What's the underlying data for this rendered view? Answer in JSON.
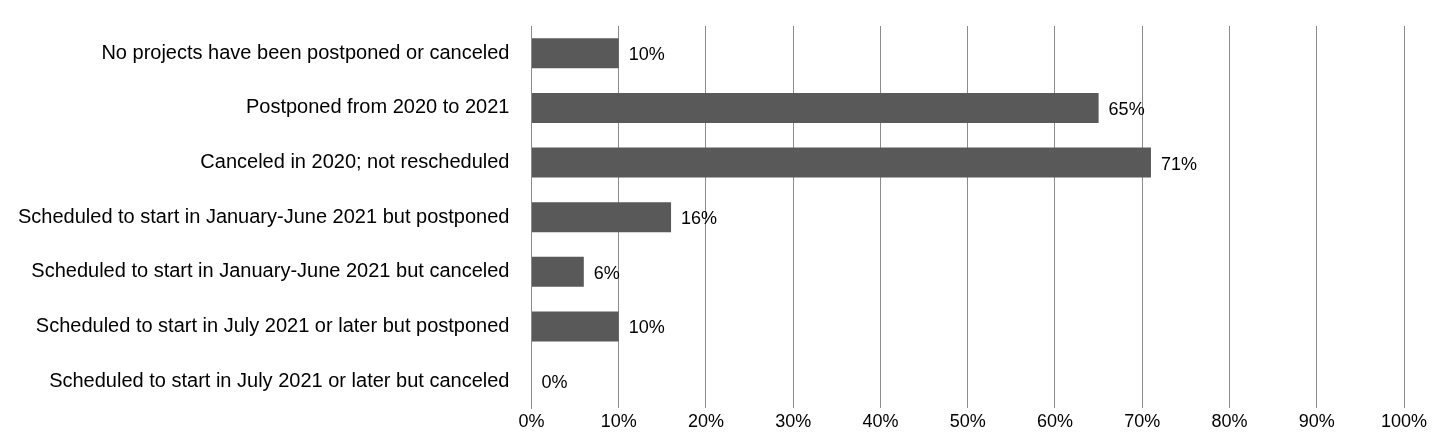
{
  "chart_data": {
    "type": "bar",
    "orientation": "horizontal",
    "categories": [
      "No projects have been postponed or canceled",
      "Postponed from 2020 to 2021",
      "Canceled in 2020; not rescheduled",
      "Scheduled to start in January-June 2021 but postponed",
      "Scheduled to start in January-June 2021 but canceled",
      "Scheduled to start in July 2021 or later but postponed",
      "Scheduled to start in July 2021 or later but canceled"
    ],
    "values": [
      10,
      65,
      71,
      16,
      6,
      10,
      0
    ],
    "value_labels": [
      "10%",
      "65%",
      "71%",
      "16%",
      "6%",
      "10%",
      "0%"
    ],
    "color": "#595959",
    "xlim": [
      0,
      100
    ],
    "xticks": [
      {
        "value": 0,
        "label": "0%"
      },
      {
        "value": 10,
        "label": "10%"
      },
      {
        "value": 20,
        "label": "20%"
      },
      {
        "value": 30,
        "label": "30%"
      },
      {
        "value": 40,
        "label": "40%"
      },
      {
        "value": 50,
        "label": "50%"
      },
      {
        "value": 60,
        "label": "60%"
      },
      {
        "value": 70,
        "label": "70%"
      },
      {
        "value": 80,
        "label": "80%"
      },
      {
        "value": 90,
        "label": "90%"
      },
      {
        "value": 100,
        "label": "100%"
      }
    ],
    "grid": "x"
  }
}
